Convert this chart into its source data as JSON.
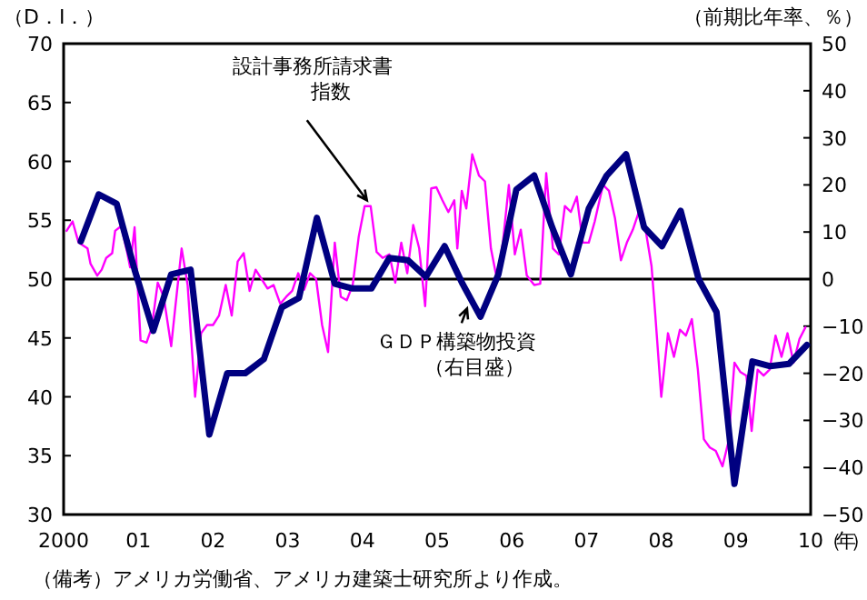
{
  "chart_data": {
    "type": "line",
    "ylabel": "（D．I．）",
    "y2label": "（前期比年率、％）",
    "xlabel": "（年）",
    "xlim": [
      2000,
      2010
    ],
    "ylim": [
      30,
      70
    ],
    "y2lim": [
      -50,
      50
    ],
    "xticks": [
      {
        "value": 2000,
        "label": "2000"
      },
      {
        "value": 2001,
        "label": "01"
      },
      {
        "value": 2002,
        "label": "02"
      },
      {
        "value": 2003,
        "label": "03"
      },
      {
        "value": 2004,
        "label": "04"
      },
      {
        "value": 2005,
        "label": "05"
      },
      {
        "value": 2006,
        "label": "06"
      },
      {
        "value": 2007,
        "label": "07"
      },
      {
        "value": 2008,
        "label": "08"
      },
      {
        "value": 2009,
        "label": "09"
      },
      {
        "value": 2010,
        "label": "10"
      }
    ],
    "yticks": [
      30,
      35,
      40,
      45,
      50,
      55,
      60,
      65,
      70
    ],
    "y2ticks": [
      -50,
      -40,
      -30,
      -20,
      -10,
      0,
      10,
      20,
      30,
      40,
      50
    ],
    "ref_lines": [
      {
        "axis": "y",
        "value": 50
      }
    ],
    "marker": "none",
    "line_style": "solid",
    "series": [
      {
        "color": "#ff00ff",
        "axis": "y",
        "x": [
          2000.04,
          2000.12,
          2000.2,
          2000.32,
          2000.36,
          2000.45,
          2000.51,
          2000.57,
          2000.65,
          2000.69,
          2000.77,
          2000.85,
          2000.89,
          2000.95,
          2001.03,
          2001.11,
          2001.18,
          2001.26,
          2001.34,
          2001.44,
          2001.5,
          2001.58,
          2001.66,
          2001.76,
          2001.84,
          2001.92,
          2002.0,
          2002.08,
          2002.17,
          2002.25,
          2002.33,
          2002.41,
          2002.49,
          2002.57,
          2002.65,
          2002.73,
          2002.81,
          2002.9,
          2002.98,
          2003.06,
          2003.14,
          2003.22,
          2003.3,
          2003.38,
          2003.46,
          2003.54,
          2003.63,
          2003.71,
          2003.79,
          2003.87,
          2003.95,
          2004.03,
          2004.11,
          2004.19,
          2004.27,
          2004.36,
          2004.44,
          2004.52,
          2004.6,
          2004.68,
          2004.76,
          2004.84,
          2004.92,
          2004.99,
          2005.07,
          2005.15,
          2005.23,
          2005.27,
          2005.33,
          2005.39,
          2005.47,
          2005.56,
          2005.64,
          2005.72,
          2005.8,
          2005.88,
          2005.96,
          2006.04,
          2006.12,
          2006.2,
          2006.3,
          2006.38,
          2006.46,
          2006.55,
          2006.63,
          2006.71,
          2006.79,
          2006.87,
          2006.95,
          2007.03,
          2007.11,
          2007.22,
          2007.3,
          2007.38,
          2007.46,
          2007.54,
          2007.62,
          2007.7,
          2007.79,
          2007.87,
          2007.92,
          2008.0,
          2008.09,
          2008.17,
          2008.25,
          2008.33,
          2008.41,
          2008.49,
          2008.57,
          2008.65,
          2008.73,
          2008.82,
          2008.9,
          2008.98,
          2009.06,
          2009.14,
          2009.21,
          2009.29,
          2009.37,
          2009.45,
          2009.53,
          2009.61,
          2009.69,
          2009.77,
          2009.85,
          2009.93
        ],
        "values": [
          54.1,
          54.9,
          53.1,
          52.6,
          51.3,
          50.3,
          50.8,
          51.8,
          52.2,
          54.1,
          54.5,
          52.3,
          51.0,
          54.4,
          44.8,
          44.6,
          45.9,
          49.7,
          48.5,
          44.3,
          47.9,
          52.6,
          49.5,
          40.0,
          45.4,
          46.1,
          46.1,
          46.9,
          49.5,
          46.9,
          51.5,
          52.2,
          49.0,
          50.8,
          50.0,
          49.2,
          49.5,
          47.9,
          48.5,
          49.0,
          50.5,
          49.1,
          50.5,
          50.0,
          46.1,
          43.8,
          53.1,
          48.5,
          48.2,
          49.5,
          53.6,
          56.2,
          56.2,
          52.3,
          51.8,
          52.1,
          49.7,
          53.1,
          50.5,
          54.6,
          52.6,
          47.7,
          57.7,
          57.8,
          56.7,
          55.7,
          56.7,
          52.6,
          57.5,
          56.0,
          60.6,
          58.8,
          58.3,
          52.6,
          50.0,
          53.1,
          58.0,
          52.1,
          54.2,
          50.3,
          49.5,
          49.6,
          59.0,
          52.6,
          52.1,
          56.2,
          55.7,
          57.0,
          53.1,
          53.1,
          54.9,
          58.0,
          57.5,
          55.2,
          51.6,
          53.1,
          54.2,
          55.7,
          54.2,
          51.1,
          47.0,
          40.0,
          45.4,
          43.4,
          45.7,
          45.2,
          46.6,
          42.3,
          36.4,
          35.7,
          35.4,
          34.1,
          36.2,
          42.9,
          42.1,
          41.8,
          37.1,
          42.3,
          41.8,
          42.3,
          45.2,
          43.4,
          45.4,
          42.9,
          44.9,
          45.9
        ]
      },
      {
        "color": "#000080",
        "axis": "y2",
        "x": [
          2000.23,
          2000.47,
          2000.71,
          2000.95,
          2001.2,
          2001.44,
          2001.7,
          2001.95,
          2002.19,
          2002.43,
          2002.68,
          2002.92,
          2003.15,
          2003.39,
          2003.63,
          2003.87,
          2004.12,
          2004.36,
          2004.61,
          2004.85,
          2005.1,
          2005.34,
          2005.58,
          2005.82,
          2006.06,
          2006.3,
          2006.54,
          2006.79,
          2007.03,
          2007.27,
          2007.53,
          2007.77,
          2008.01,
          2008.26,
          2008.5,
          2008.74,
          2008.98,
          2009.22,
          2009.46,
          2009.71,
          2009.95
        ],
        "values": [
          8,
          18,
          16,
          2,
          -11,
          1,
          2,
          -33,
          -20,
          -20,
          -17,
          -6,
          -4,
          13,
          -1,
          -2,
          -2,
          4.5,
          4,
          0.5,
          7,
          -1,
          -8,
          1,
          19,
          22,
          11,
          1,
          15,
          22,
          26.5,
          11,
          7,
          14.5,
          0,
          -7,
          -43.5,
          -17.5,
          -18.5,
          -18,
          -14
        ]
      }
    ],
    "annotations": [
      {
        "text": "設計事務所請求書指数",
        "x": 2004.06,
        "y": 56.7
      },
      {
        "text": "ＧＤＰ構築物投資（右目盛）",
        "x": 2005.4,
        "y": 47.5
      },
      "（備考）アメリカ労働省、アメリカ建築士研究所より作成。"
    ]
  }
}
